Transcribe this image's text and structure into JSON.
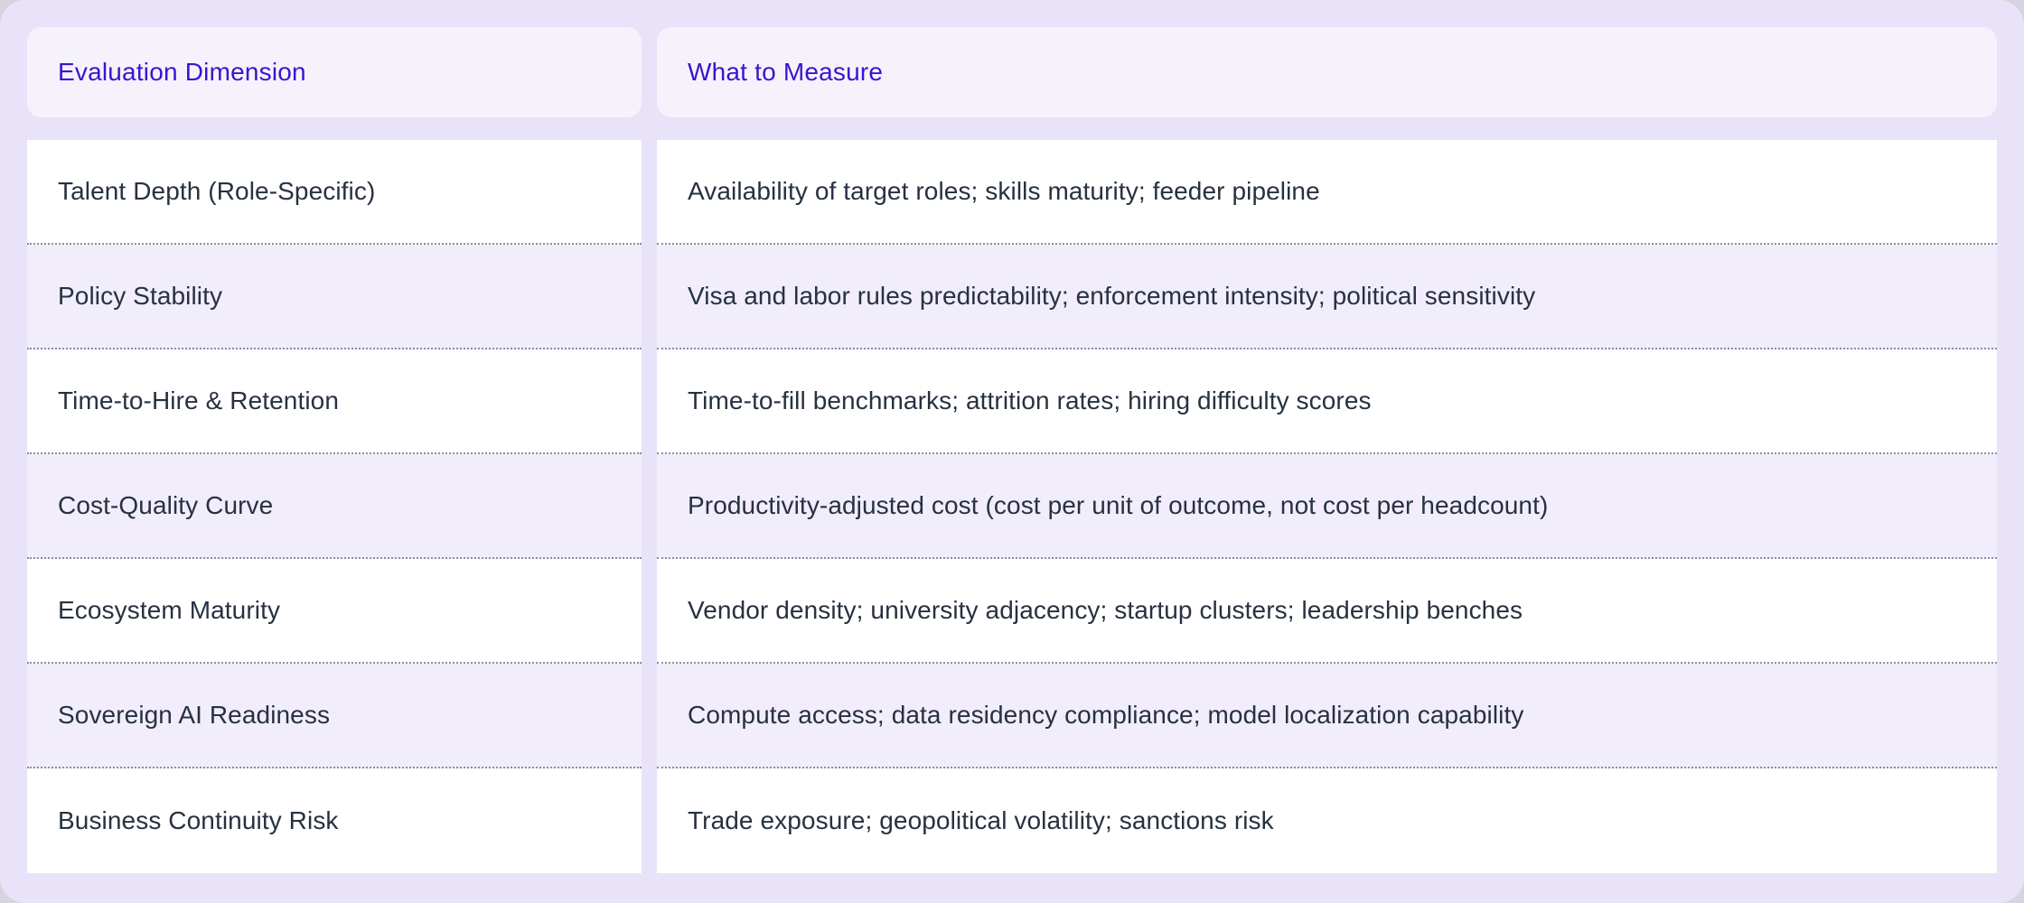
{
  "table": {
    "columns": [
      {
        "label": "Evaluation Dimension"
      },
      {
        "label": "What to Measure"
      }
    ],
    "rows": [
      {
        "dimension": "Talent Depth (Role-Specific)",
        "measure": "Availability of target roles; skills maturity; feeder pipeline"
      },
      {
        "dimension": "Policy Stability",
        "measure": "Visa and labor rules predictability; enforcement intensity; political sensitivity"
      },
      {
        "dimension": "Time-to-Hire & Retention",
        "measure": "Time-to-fill benchmarks; attrition rates; hiring difficulty scores"
      },
      {
        "dimension": "Cost-Quality Curve",
        "measure": "Productivity-adjusted cost (cost per unit of outcome, not cost per headcount)"
      },
      {
        "dimension": "Ecosystem Maturity",
        "measure": "Vendor density; university adjacency; startup clusters; leadership benches"
      },
      {
        "dimension": "Sovereign AI Readiness",
        "measure": "Compute access; data residency compliance; model localization capability"
      },
      {
        "dimension": "Business Continuity Risk",
        "measure": "Trade exposure; geopolitical volatility; sanctions risk"
      }
    ],
    "colors": {
      "header_text": "#3c13cf",
      "body_text": "#273140",
      "card_bg": "#e8e3f8",
      "header_cell_bg": "#f5f2fc",
      "row_bg": "#ffffff",
      "row_alt_bg": "#f1edfa",
      "separator_dots": "#8a8ea0"
    }
  }
}
